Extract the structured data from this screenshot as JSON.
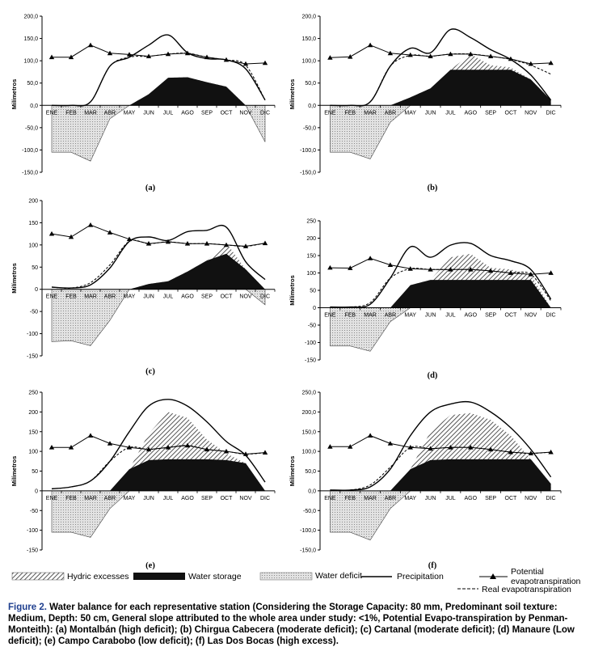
{
  "chart_data": {
    "type": "line",
    "months": [
      "ENE",
      "FEB",
      "MAR",
      "ABR",
      "MAY",
      "JUN",
      "JUL",
      "AGO",
      "SEP",
      "OCT",
      "NOV",
      "DIC"
    ],
    "ylabel": "Milímetros",
    "legend": {
      "hydric_excesses": "Hydric excesses",
      "water_storage": "Water storage",
      "water_deficit": "Water deficit",
      "precipitation": "Precipitation",
      "pet_line1": "Potential",
      "pet_line2": "evapotranspiration",
      "real_et": "Real evapotranspiration"
    },
    "colors": {
      "storage": "#111111",
      "deficit_fill": "#d9d9d9",
      "excess_hatch": "#555555",
      "line": "#000000",
      "caption_accent": "#1f3f8f"
    },
    "panels": [
      {
        "label": "(a)",
        "ylim": [
          -150,
          200
        ],
        "ticks": [
          "200,0",
          "150,0",
          "100,0",
          "50,0",
          "0,0",
          "-50,0",
          "-100,0",
          "-150,0"
        ],
        "precipitation": [
          0,
          0,
          8,
          88,
          108,
          135,
          158,
          118,
          105,
          102,
          82,
          12
        ],
        "pet": [
          108,
          108,
          135,
          117,
          114,
          110,
          115,
          117,
          108,
          102,
          93,
          95
        ],
        "ret": [
          0,
          0,
          8,
          88,
          108,
          110,
          115,
          117,
          108,
          102,
          90,
          12
        ],
        "storage": [
          0,
          0,
          0,
          0,
          0,
          25,
          62,
          63,
          52,
          42,
          0,
          0
        ],
        "excess": [
          0,
          0,
          0,
          0,
          0,
          0,
          0,
          0,
          0,
          0,
          0,
          0
        ],
        "deficit": [
          -105,
          -105,
          -125,
          -30,
          0,
          0,
          0,
          0,
          0,
          0,
          0,
          -82
        ]
      },
      {
        "label": "(b)",
        "ylim": [
          -150,
          200
        ],
        "ticks": [
          "200,0",
          "150,0",
          "100,0",
          "50,0",
          "0,0",
          "-50,0",
          "-100,0",
          "-150,0"
        ],
        "precipitation": [
          0,
          0,
          8,
          88,
          128,
          118,
          170,
          152,
          125,
          103,
          68,
          12
        ],
        "pet": [
          107,
          109,
          135,
          117,
          113,
          110,
          115,
          115,
          110,
          104,
          93,
          95
        ],
        "ret": [
          0,
          0,
          8,
          88,
          112,
          110,
          115,
          115,
          110,
          103,
          90,
          70
        ],
        "storage": [
          0,
          0,
          0,
          0,
          18,
          38,
          80,
          80,
          80,
          80,
          58,
          12
        ],
        "excess": [
          0,
          0,
          0,
          0,
          0,
          0,
          0,
          115,
          90,
          85,
          0,
          0
        ],
        "deficit": [
          -105,
          -105,
          -120,
          -38,
          0,
          0,
          0,
          0,
          0,
          0,
          0,
          0
        ]
      },
      {
        "label": "(c)",
        "ylim": [
          -150,
          200
        ],
        "ticks": [
          "200",
          "150",
          "100",
          "50",
          "0",
          "-50",
          "-100",
          "-150"
        ],
        "precipitation": [
          5,
          3,
          10,
          48,
          108,
          118,
          110,
          130,
          133,
          140,
          62,
          22
        ],
        "pet": [
          125,
          118,
          145,
          128,
          113,
          103,
          107,
          103,
          103,
          100,
          97,
          104
        ],
        "ret": [
          5,
          3,
          15,
          55,
          108,
          103,
          107,
          103,
          103,
          100,
          97,
          104
        ],
        "storage": [
          0,
          0,
          0,
          0,
          0,
          12,
          18,
          40,
          65,
          80,
          45,
          0
        ],
        "excess": [
          0,
          0,
          0,
          0,
          0,
          0,
          0,
          0,
          0,
          105,
          0,
          0
        ],
        "deficit": [
          -118,
          -116,
          -127,
          -70,
          0,
          0,
          0,
          0,
          0,
          0,
          0,
          -35
        ]
      },
      {
        "label": "(d)",
        "ylim": [
          -150,
          250
        ],
        "ticks": [
          "250",
          "200",
          "150",
          "100",
          "50",
          "0",
          "-50",
          "-100",
          "-150"
        ],
        "precipitation": [
          2,
          2,
          10,
          85,
          175,
          145,
          180,
          185,
          150,
          135,
          110,
          25
        ],
        "pet": [
          115,
          114,
          142,
          123,
          112,
          110,
          110,
          110,
          106,
          100,
          96,
          100
        ],
        "ret": [
          2,
          2,
          15,
          85,
          112,
          110,
          110,
          110,
          106,
          100,
          96,
          20
        ],
        "storage": [
          0,
          0,
          0,
          0,
          65,
          80,
          80,
          80,
          80,
          80,
          80,
          0
        ],
        "excess": [
          0,
          0,
          0,
          0,
          0,
          0,
          145,
          155,
          115,
          110,
          95,
          0
        ],
        "deficit": [
          -110,
          -110,
          -125,
          -40,
          0,
          0,
          0,
          0,
          0,
          0,
          0,
          0
        ]
      },
      {
        "label": "(e)",
        "ylim": [
          -150,
          250
        ],
        "ticks": [
          "250",
          "200",
          "150",
          "100",
          "50",
          "0",
          "-50",
          "-100",
          "-150"
        ],
        "precipitation": [
          5,
          10,
          25,
          75,
          150,
          215,
          232,
          215,
          175,
          125,
          90,
          22
        ],
        "pet": [
          110,
          110,
          140,
          120,
          110,
          105,
          110,
          115,
          105,
          100,
          93,
          97
        ],
        "ret": [
          5,
          10,
          25,
          75,
          110,
          105,
          110,
          115,
          105,
          100,
          93,
          97
        ],
        "storage": [
          0,
          0,
          0,
          0,
          55,
          78,
          80,
          80,
          80,
          78,
          70,
          0
        ],
        "excess": [
          0,
          0,
          0,
          0,
          0,
          145,
          200,
          185,
          130,
          95,
          0,
          0
        ],
        "deficit": [
          -105,
          -105,
          -118,
          -45,
          0,
          0,
          0,
          0,
          0,
          0,
          0,
          0
        ]
      },
      {
        "label": "(f)",
        "ylim": [
          -150,
          250
        ],
        "ticks": [
          "250,0",
          "200,0",
          "150,0",
          "100,0",
          "50,0",
          "0,0",
          "-50,0",
          "-100,0",
          "-150,0"
        ],
        "precipitation": [
          2,
          2,
          10,
          55,
          140,
          200,
          220,
          225,
          200,
          160,
          105,
          35
        ],
        "pet": [
          112,
          112,
          140,
          120,
          110,
          107,
          110,
          110,
          105,
          98,
          95,
          98
        ],
        "ret": [
          2,
          2,
          15,
          60,
          110,
          107,
          110,
          110,
          105,
          98,
          95,
          98
        ],
        "storage": [
          0,
          0,
          0,
          0,
          55,
          78,
          80,
          80,
          80,
          80,
          80,
          18
        ],
        "excess": [
          0,
          0,
          0,
          0,
          0,
          150,
          192,
          197,
          180,
          140,
          0,
          0
        ],
        "deficit": [
          -105,
          -105,
          -125,
          -45,
          0,
          0,
          0,
          0,
          0,
          0,
          0,
          0
        ]
      }
    ]
  },
  "caption": {
    "lead": "Figure 2.",
    "text": "Water balance for each representative station (Considering the Storage Capacity: 80 mm, Predominant soil texture: Medium, Depth: 50 cm, General slope attributed to the whole area under study: <1%, Potential Evapo-transpiration by Penman- Monteith): (a) Montalbán (high deficit); (b) Chirgua Cabecera (moderate deficit); (c) Cartanal (moderate deficit); (d) Manaure (Low deficit); (e) Campo Carabobo (low deficit); (f) Las Dos Bocas (high excess)."
  }
}
